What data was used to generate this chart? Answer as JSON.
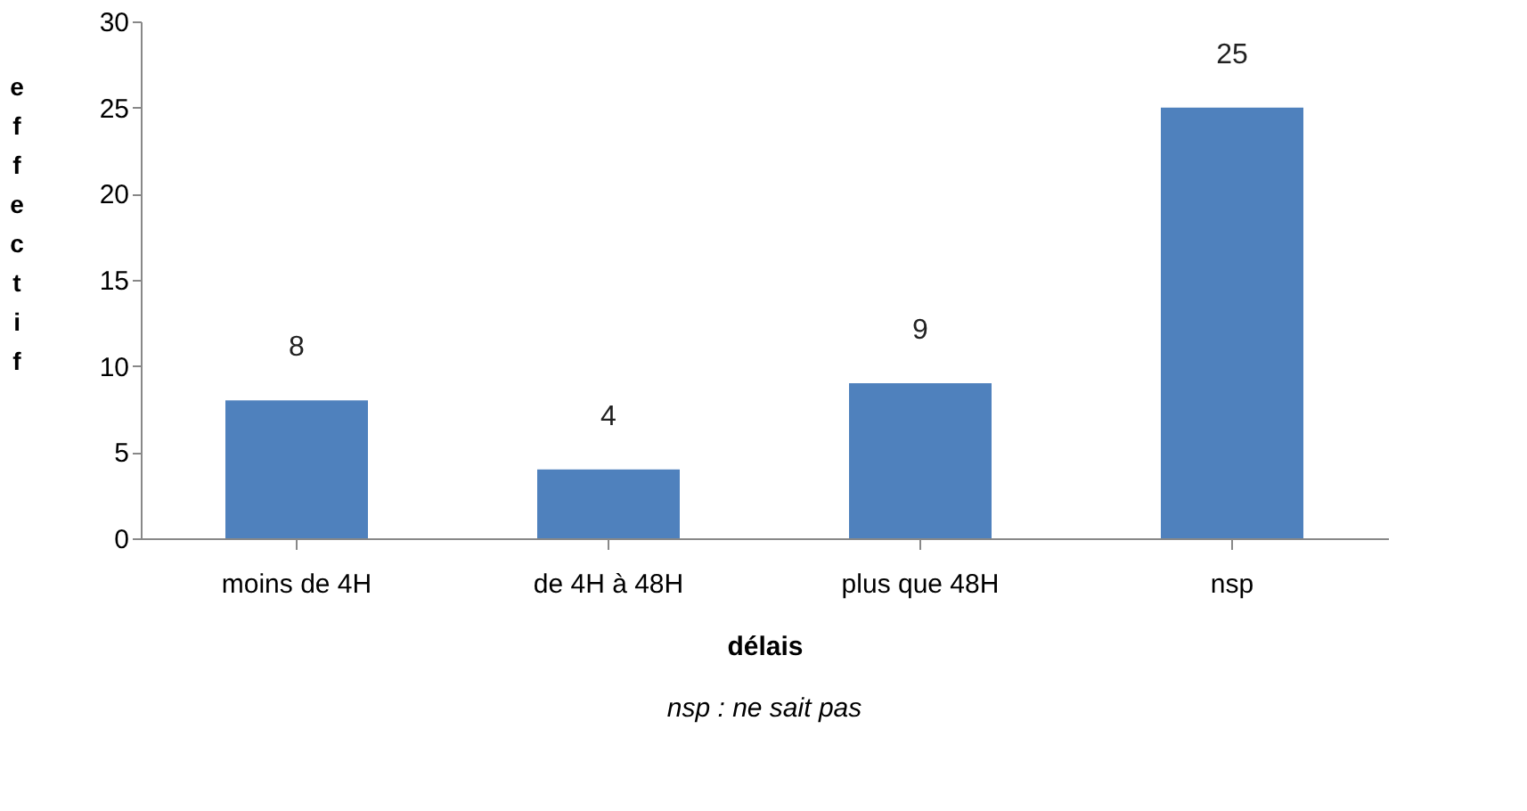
{
  "chart_data": {
    "type": "bar",
    "categories": [
      "moins de 4H",
      "de 4H à 48H",
      "plus que 48H",
      "nsp"
    ],
    "values": [
      8,
      4,
      9,
      25
    ],
    "data_labels": true,
    "color": "#4f81bd",
    "xlabel": "délais",
    "ylabel": "effectif",
    "ylim": [
      0,
      30
    ],
    "yticks": [
      0,
      5,
      10,
      15,
      20,
      25,
      30
    ],
    "grid": false,
    "annotations": [
      "nsp : ne sait pas"
    ]
  }
}
